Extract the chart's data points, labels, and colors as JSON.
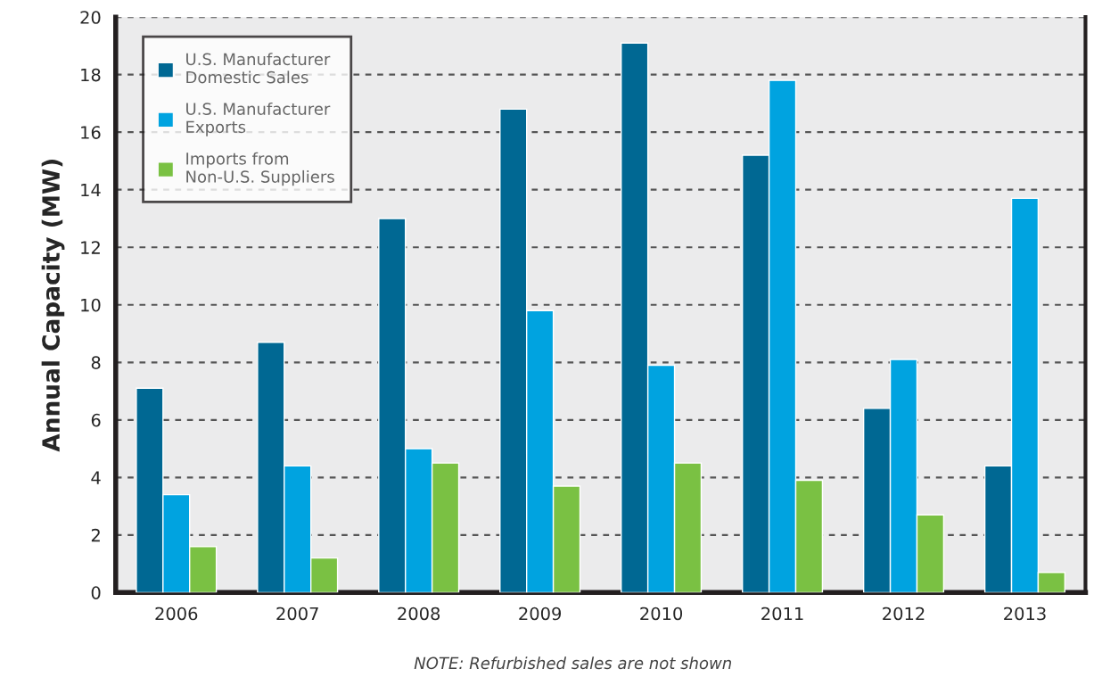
{
  "chart_data": {
    "type": "bar",
    "ylabel": "Annual Capacity (MW)",
    "categories": [
      "2006",
      "2007",
      "2008",
      "2009",
      "2010",
      "2011",
      "2012",
      "2013"
    ],
    "series": [
      {
        "name": "U.S. Manufacturer\nDomestic Sales",
        "color": "#006893",
        "values": [
          7.1,
          8.7,
          13.0,
          16.8,
          19.1,
          15.2,
          6.4,
          4.4
        ]
      },
      {
        "name": "U.S. Manufacturer\nExports",
        "color": "#00a3e0",
        "values": [
          3.4,
          4.4,
          5.0,
          9.8,
          7.9,
          17.8,
          8.1,
          13.7
        ]
      },
      {
        "name": "Imports from\nNon-U.S. Suppliers",
        "color": "#7ac143",
        "values": [
          1.6,
          1.2,
          4.5,
          3.7,
          4.5,
          3.9,
          2.7,
          0.7
        ]
      }
    ],
    "ylim": [
      0,
      20
    ],
    "yticks": [
      0,
      2,
      4,
      6,
      8,
      10,
      12,
      14,
      16,
      18,
      20
    ],
    "grid": "y",
    "legend": "top left",
    "annotations": [
      "NOTE: Refurbished sales are not shown"
    ]
  }
}
